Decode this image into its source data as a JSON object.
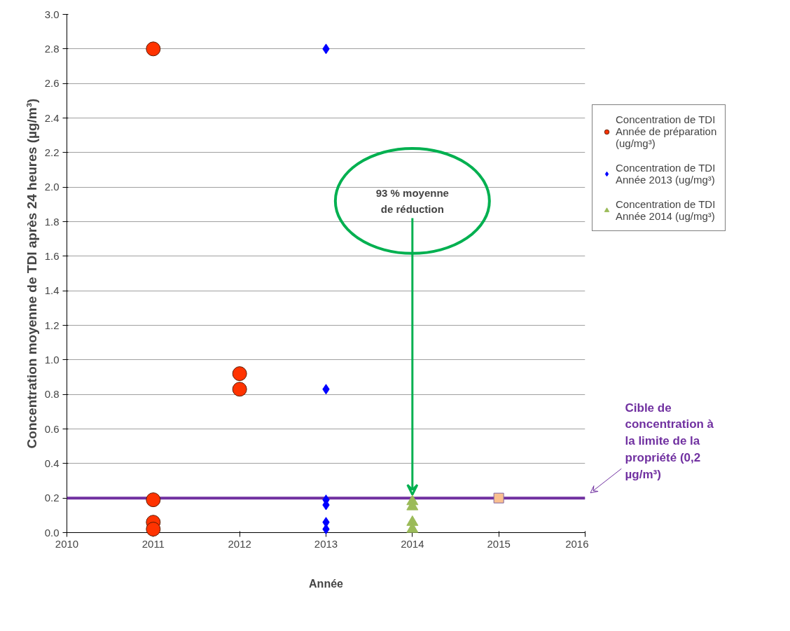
{
  "chart_data": {
    "type": "scatter",
    "xlabel": "Année",
    "ylabel": "Concentration moyenne de TDI après 24 heures (µg/m³)",
    "xlim": [
      2010,
      2016
    ],
    "xticks": [
      2010,
      2011,
      2012,
      2013,
      2014,
      2015,
      2016
    ],
    "ylim": [
      0,
      3
    ],
    "yticks": [
      {
        "value": 0,
        "label": "0.0"
      },
      {
        "value": 0.2,
        "label": "0.2"
      },
      {
        "value": 0.4,
        "label": "0.4"
      },
      {
        "value": 0.6,
        "label": "0.6"
      },
      {
        "value": 0.8,
        "label": "0.8"
      },
      {
        "value": 1,
        "label": "1.0"
      },
      {
        "value": 1.2,
        "label": "1.2"
      },
      {
        "value": 1.4,
        "label": "1.4"
      },
      {
        "value": 1.6,
        "label": "1.6"
      },
      {
        "value": 1.8,
        "label": "1.8"
      },
      {
        "value": 2,
        "label": "2.0"
      },
      {
        "value": 2.2,
        "label": "2.2"
      },
      {
        "value": 2.4,
        "label": "2.4"
      },
      {
        "value": 2.6,
        "label": "2.6"
      },
      {
        "value": 2.8,
        "label": "2.8"
      },
      {
        "value": 3,
        "label": "3.0"
      }
    ],
    "grid": "y",
    "legend": "right",
    "series": [
      {
        "name": "Concentration de TDI Année de préparation (ug/mg³)",
        "color": "#ff3300",
        "marker": "circle",
        "x": [
          2011,
          2011,
          2011,
          2011,
          2012,
          2012
        ],
        "values": [
          2.8,
          0.19,
          0.06,
          0.02,
          0.92,
          0.83
        ]
      },
      {
        "name": "Concentration de TDI Année 2013 (ug/mg³)",
        "color": "#0000ff",
        "marker": "diamond",
        "x": [
          2013,
          2013,
          2013,
          2013,
          2013,
          2013
        ],
        "values": [
          2.8,
          0.83,
          0.19,
          0.16,
          0.06,
          0.02
        ]
      },
      {
        "name": "Concentration de TDI Année 2014 (ug/mg³)",
        "color": "#9bbb59",
        "marker": "triangle",
        "x": [
          2014,
          2014,
          2014,
          2014
        ],
        "values": [
          0.18,
          0.15,
          0.06,
          0.02
        ]
      },
      {
        "color": "#fac090",
        "marker": "square",
        "x": [
          2015
        ],
        "values": [
          0.2
        ]
      }
    ],
    "ref_lines": [
      {
        "axis": "y",
        "value": 0.2,
        "label": "Cible de concentration à la limite de la propriété (0,2 µg/m³)",
        "color": "#7030a0"
      }
    ],
    "annotations": [
      {
        "text": "93 % moyenne de réduction",
        "x": 2014,
        "y": 0.2
      }
    ]
  }
}
